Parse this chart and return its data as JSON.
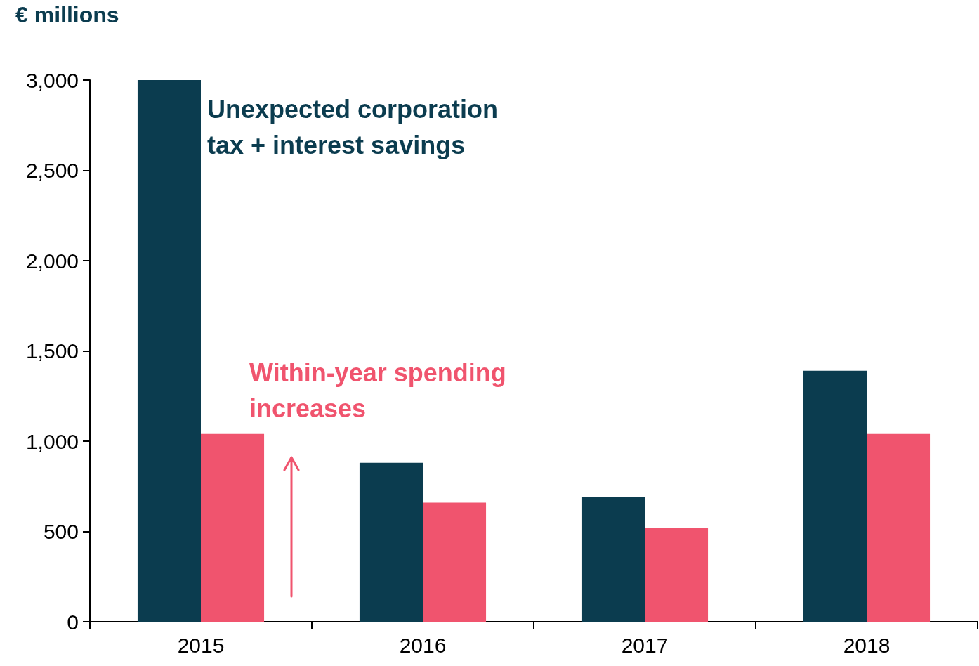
{
  "chart_data": {
    "type": "bar",
    "ylabel": "€ millions",
    "categories": [
      "2015",
      "2016",
      "2017",
      "2018"
    ],
    "series": [
      {
        "name": "Unexpected corporation tax + interest savings",
        "color": "#0b3c4f",
        "values": [
          3000,
          880,
          690,
          1390
        ]
      },
      {
        "name": "Within-year spending increases",
        "color": "#f0546e",
        "values": [
          1040,
          660,
          520,
          1040
        ]
      }
    ],
    "ylim": [
      0,
      3000
    ],
    "yticks": [
      0,
      {
        "value": 500,
        "label": "500"
      },
      {
        "value": 1000,
        "label": "1,000"
      },
      {
        "value": 1500,
        "label": "1,500"
      },
      {
        "value": 2000,
        "label": "2,000"
      },
      {
        "value": 2500,
        "label": "2,500"
      },
      {
        "value": 3000,
        "label": "3,000"
      }
    ],
    "grid": false,
    "legend": false
  }
}
